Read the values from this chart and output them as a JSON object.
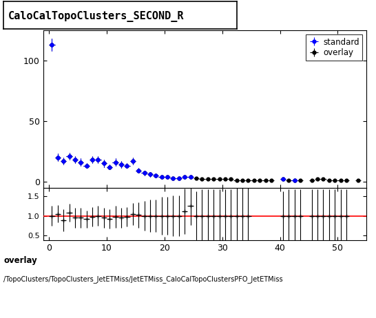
{
  "title": "CaloCalTopoClusters_SECOND_R",
  "overlay_label": "overlay",
  "standard_label": "standard",
  "footer_line1": "overlay",
  "footer_line2": "/TopoClusters/TopoClusters_JetETMiss/JetETMiss_CaloCalTopoClustersPFO_JetETMiss",
  "main_xlim": [
    -1,
    55
  ],
  "main_ylim": [
    -5,
    125
  ],
  "ratio_ylim": [
    0.38,
    1.72
  ],
  "ratio_yticks": [
    0.5,
    1.0,
    1.5
  ],
  "xticks": [
    0,
    10,
    20,
    30,
    40,
    50
  ],
  "main_yticks": [
    0,
    50,
    100
  ],
  "overlay_color": "#000000",
  "standard_color": "#0000ff",
  "ratio_line_color": "#ff0000",
  "background_color": "#ffffff",
  "overlay_x": [
    0.5,
    1.5,
    2.5,
    3.5,
    4.5,
    5.5,
    6.5,
    7.5,
    8.5,
    9.5,
    10.5,
    11.5,
    12.5,
    13.5,
    14.5,
    15.5,
    16.5,
    17.5,
    18.5,
    19.5,
    20.5,
    21.5,
    22.5,
    23.5,
    24.5,
    25.5,
    26.5,
    27.5,
    28.5,
    29.5,
    30.5,
    31.5,
    32.5,
    33.5,
    34.5,
    35.5,
    36.5,
    37.5,
    38.5,
    40.5,
    41.5,
    42.5,
    43.5,
    45.5,
    46.5,
    47.5,
    48.5,
    49.5,
    50.5,
    51.5,
    53.5
  ],
  "overlay_y": [
    113,
    20,
    17,
    21,
    18,
    16,
    13,
    18,
    18,
    15,
    12,
    16,
    14,
    13,
    17,
    9,
    7,
    6,
    5,
    4,
    4,
    3,
    3,
    4,
    4,
    3,
    2,
    2,
    2,
    2,
    2,
    2,
    1,
    1,
    1,
    1,
    1,
    1,
    1,
    2,
    1,
    1,
    1,
    1,
    2,
    2,
    1,
    1,
    1,
    1,
    1
  ],
  "overlay_yerr": [
    5,
    3,
    3,
    3,
    3,
    3,
    2,
    3,
    3,
    3,
    2,
    3,
    3,
    2,
    3,
    2,
    2,
    2,
    1,
    1,
    1,
    1,
    1,
    1,
    1,
    1,
    1,
    1,
    1,
    1,
    1,
    1,
    0.5,
    0.5,
    0.5,
    0.5,
    0.5,
    0.5,
    0.5,
    1,
    0.5,
    0.5,
    0.5,
    0.5,
    1,
    1,
    0.5,
    0.5,
    0.5,
    0.5,
    0.5
  ],
  "overlay_xerr": [
    0.5,
    0.5,
    0.5,
    0.5,
    0.5,
    0.5,
    0.5,
    0.5,
    0.5,
    0.5,
    0.5,
    0.5,
    0.5,
    0.5,
    0.5,
    0.5,
    0.5,
    0.5,
    0.5,
    0.5,
    0.5,
    0.5,
    0.5,
    0.5,
    0.5,
    0.5,
    0.5,
    0.5,
    0.5,
    0.5,
    0.5,
    0.5,
    0.5,
    0.5,
    0.5,
    0.5,
    0.5,
    0.5,
    0.5,
    0.5,
    0.5,
    0.5,
    0.5,
    0.5,
    0.5,
    0.5,
    0.5,
    0.5,
    0.5,
    0.5,
    0.5
  ],
  "standard_x": [
    0.5,
    1.5,
    2.5,
    3.5,
    4.5,
    5.5,
    6.5,
    7.5,
    8.5,
    9.5,
    10.5,
    11.5,
    12.5,
    13.5,
    14.5,
    15.5,
    16.5,
    17.5,
    18.5,
    19.5,
    20.5,
    21.5,
    22.5,
    23.5,
    24.5,
    40.5,
    42.5
  ],
  "standard_y": [
    113,
    20,
    17,
    21,
    18,
    16,
    13,
    18,
    18,
    15,
    12,
    16,
    14,
    13,
    17,
    9,
    7,
    6,
    5,
    4,
    4,
    3,
    3,
    4,
    4,
    2,
    1
  ],
  "standard_yerr": [
    5,
    3,
    3,
    3,
    3,
    3,
    2,
    3,
    3,
    3,
    2,
    3,
    3,
    2,
    3,
    2,
    2,
    2,
    1,
    1,
    1,
    1,
    1,
    1,
    1,
    1,
    0.5
  ],
  "standard_xerr": [
    0.5,
    0.5,
    0.5,
    0.5,
    0.5,
    0.5,
    0.5,
    0.5,
    0.5,
    0.5,
    0.5,
    0.5,
    0.5,
    0.5,
    0.5,
    0.5,
    0.5,
    0.5,
    0.5,
    0.5,
    0.5,
    0.5,
    0.5,
    0.5,
    0.5,
    0.5,
    0.5
  ],
  "ratio_x": [
    0.5,
    1.5,
    2.5,
    3.5,
    4.5,
    5.5,
    6.5,
    7.5,
    8.5,
    9.5,
    10.5,
    11.5,
    12.5,
    13.5,
    14.5,
    15.5,
    16.5,
    17.5,
    18.5,
    19.5,
    20.5,
    21.5,
    22.5,
    23.5,
    24.5,
    25.5,
    26.5,
    27.5,
    28.5,
    29.5,
    30.5,
    31.5,
    32.5,
    33.5,
    34.5,
    40.5,
    41.5,
    42.5,
    43.5,
    45.5,
    46.5,
    47.5,
    48.5,
    49.5,
    50.5,
    51.5
  ],
  "ratio_y": [
    1.0,
    1.05,
    0.88,
    1.08,
    0.95,
    0.95,
    0.92,
    0.97,
    1.0,
    0.95,
    0.92,
    0.98,
    0.95,
    0.97,
    1.05,
    1.02,
    1.0,
    1.0,
    1.0,
    1.0,
    1.0,
    1.0,
    1.0,
    1.12,
    1.25,
    1.0,
    1.0,
    1.0,
    1.0,
    1.0,
    1.0,
    1.0,
    1.0,
    1.0,
    1.0,
    1.0,
    1.0,
    1.0,
    1.0,
    1.0,
    1.0,
    1.0,
    1.0,
    1.0,
    1.0,
    1.0
  ],
  "ratio_yerr": [
    0.25,
    0.22,
    0.28,
    0.22,
    0.25,
    0.25,
    0.22,
    0.25,
    0.25,
    0.25,
    0.25,
    0.28,
    0.25,
    0.25,
    0.28,
    0.32,
    0.38,
    0.42,
    0.42,
    0.48,
    0.48,
    0.52,
    0.52,
    0.58,
    0.48,
    0.62,
    0.68,
    0.68,
    0.68,
    0.68,
    0.68,
    0.68,
    0.72,
    0.72,
    0.72,
    0.62,
    0.68,
    0.68,
    0.68,
    0.68,
    0.68,
    0.68,
    0.68,
    0.68,
    0.68,
    0.68
  ],
  "ratio_xerr": [
    0.5,
    0.5,
    0.5,
    0.5,
    0.5,
    0.5,
    0.5,
    0.5,
    0.5,
    0.5,
    0.5,
    0.5,
    0.5,
    0.5,
    0.5,
    0.5,
    0.5,
    0.5,
    0.5,
    0.5,
    0.5,
    0.5,
    0.5,
    0.5,
    0.5,
    0.5,
    0.5,
    0.5,
    0.5,
    0.5,
    0.5,
    0.5,
    0.5,
    0.5,
    0.5,
    0.5,
    0.5,
    0.5,
    0.5,
    0.5,
    0.5,
    0.5,
    0.5,
    0.5,
    0.5,
    0.5
  ]
}
